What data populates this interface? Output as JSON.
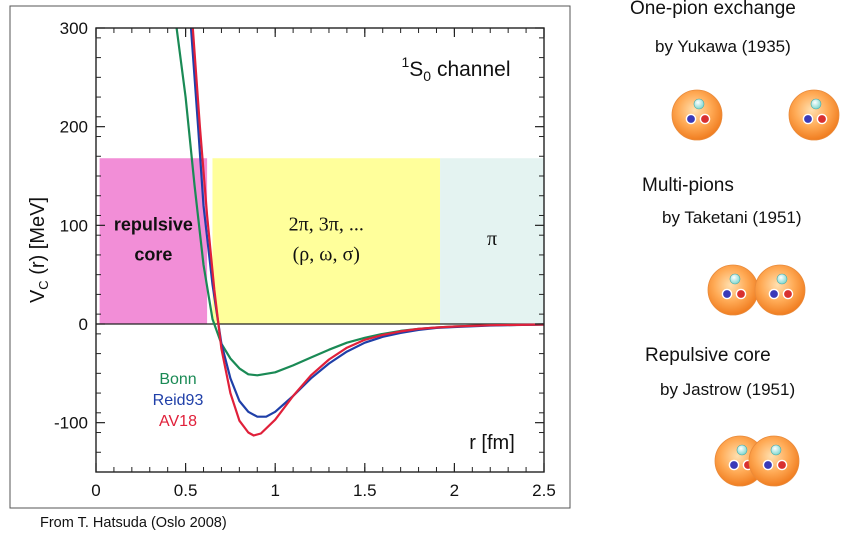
{
  "chart_data": {
    "type": "line",
    "title_html": "channel",
    "channel_sup": "1",
    "channel_letter": "S",
    "channel_sub": "0",
    "ylabel_main": "V",
    "ylabel_sub": "C",
    "ylabel_rest": " (r) [MeV]",
    "xlabel": "r [fm]",
    "xlim": [
      0,
      2.5
    ],
    "ylim": [
      -150,
      300
    ],
    "x_ticks": [
      0,
      0.5,
      1,
      1.5,
      2,
      2.5
    ],
    "x_tick_labels": [
      "0",
      "0.5",
      "1",
      "1.5",
      "2",
      "2.5"
    ],
    "y_ticks": [
      -100,
      0,
      100,
      200,
      300
    ],
    "y_tick_labels": [
      "-100",
      "0",
      "100",
      "200",
      "300"
    ],
    "regions": [
      {
        "x_from": 0.02,
        "x_to": 0.62,
        "y_to": 168,
        "color": "#f07ad0",
        "label_lines": [
          "repulsive",
          "core"
        ],
        "label_bold": true
      },
      {
        "x_from": 0.65,
        "x_to": 1.92,
        "y_to": 168,
        "color": "#ffff8a",
        "label_lines": [
          "2π, 3π, ...",
          "(ρ, ω, σ)"
        ],
        "label_bold": false
      },
      {
        "x_from": 1.92,
        "x_to": 2.5,
        "y_to": 168,
        "color": "#dff1ef",
        "label_lines": [
          "π"
        ],
        "label_bold": false
      }
    ],
    "series": [
      {
        "name": "Bonn",
        "color": "#1a8a55",
        "points": [
          [
            0.45,
            300
          ],
          [
            0.5,
            230
          ],
          [
            0.55,
            140
          ],
          [
            0.6,
            60
          ],
          [
            0.65,
            5
          ],
          [
            0.7,
            -20
          ],
          [
            0.75,
            -35
          ],
          [
            0.8,
            -45
          ],
          [
            0.85,
            -51
          ],
          [
            0.9,
            -52
          ],
          [
            1.0,
            -49
          ],
          [
            1.1,
            -42
          ],
          [
            1.2,
            -34
          ],
          [
            1.3,
            -26
          ],
          [
            1.4,
            -19
          ],
          [
            1.5,
            -14
          ],
          [
            1.6,
            -10
          ],
          [
            1.7,
            -7
          ],
          [
            1.8,
            -5
          ],
          [
            1.9,
            -3.5
          ],
          [
            2.0,
            -2.5
          ],
          [
            2.2,
            -1.2
          ],
          [
            2.5,
            -0.5
          ]
        ]
      },
      {
        "name": "Reid93",
        "color": "#1f3fa8",
        "points": [
          [
            0.53,
            300
          ],
          [
            0.57,
            200
          ],
          [
            0.6,
            120
          ],
          [
            0.65,
            40
          ],
          [
            0.7,
            -20
          ],
          [
            0.75,
            -55
          ],
          [
            0.8,
            -78
          ],
          [
            0.85,
            -89
          ],
          [
            0.9,
            -94
          ],
          [
            0.95,
            -94
          ],
          [
            1.0,
            -89
          ],
          [
            1.1,
            -73
          ],
          [
            1.2,
            -55
          ],
          [
            1.3,
            -40
          ],
          [
            1.4,
            -28
          ],
          [
            1.5,
            -19
          ],
          [
            1.6,
            -13
          ],
          [
            1.7,
            -9
          ],
          [
            1.8,
            -6
          ],
          [
            1.9,
            -4
          ],
          [
            2.0,
            -3
          ],
          [
            2.2,
            -1.5
          ],
          [
            2.5,
            -0.5
          ]
        ]
      },
      {
        "name": "AV18",
        "color": "#e0203a",
        "points": [
          [
            0.54,
            300
          ],
          [
            0.58,
            200
          ],
          [
            0.62,
            110
          ],
          [
            0.66,
            35
          ],
          [
            0.7,
            -25
          ],
          [
            0.75,
            -70
          ],
          [
            0.8,
            -98
          ],
          [
            0.85,
            -110
          ],
          [
            0.88,
            -113
          ],
          [
            0.92,
            -111
          ],
          [
            1.0,
            -97
          ],
          [
            1.1,
            -73
          ],
          [
            1.2,
            -52
          ],
          [
            1.3,
            -36
          ],
          [
            1.4,
            -24
          ],
          [
            1.5,
            -16
          ],
          [
            1.6,
            -11
          ],
          [
            1.7,
            -7.5
          ],
          [
            1.8,
            -5
          ],
          [
            1.9,
            -3.5
          ],
          [
            2.0,
            -2.5
          ],
          [
            2.2,
            -1.2
          ],
          [
            2.5,
            -0.5
          ]
        ]
      }
    ],
    "legend_placement": "lower-left"
  },
  "side": {
    "sections": [
      {
        "title": "One-pion exchange",
        "subtitle": "by Yukawa (1935)",
        "arrangement": "separate"
      },
      {
        "title": "Multi-pions",
        "subtitle": "by Taketani (1951)",
        "arrangement": "touching"
      },
      {
        "title": "Repulsive core",
        "subtitle": "by Jastrow (1951)",
        "arrangement": "overlapping"
      }
    ]
  },
  "source_note": "From T. Hatsuda (Oslo 2008)"
}
